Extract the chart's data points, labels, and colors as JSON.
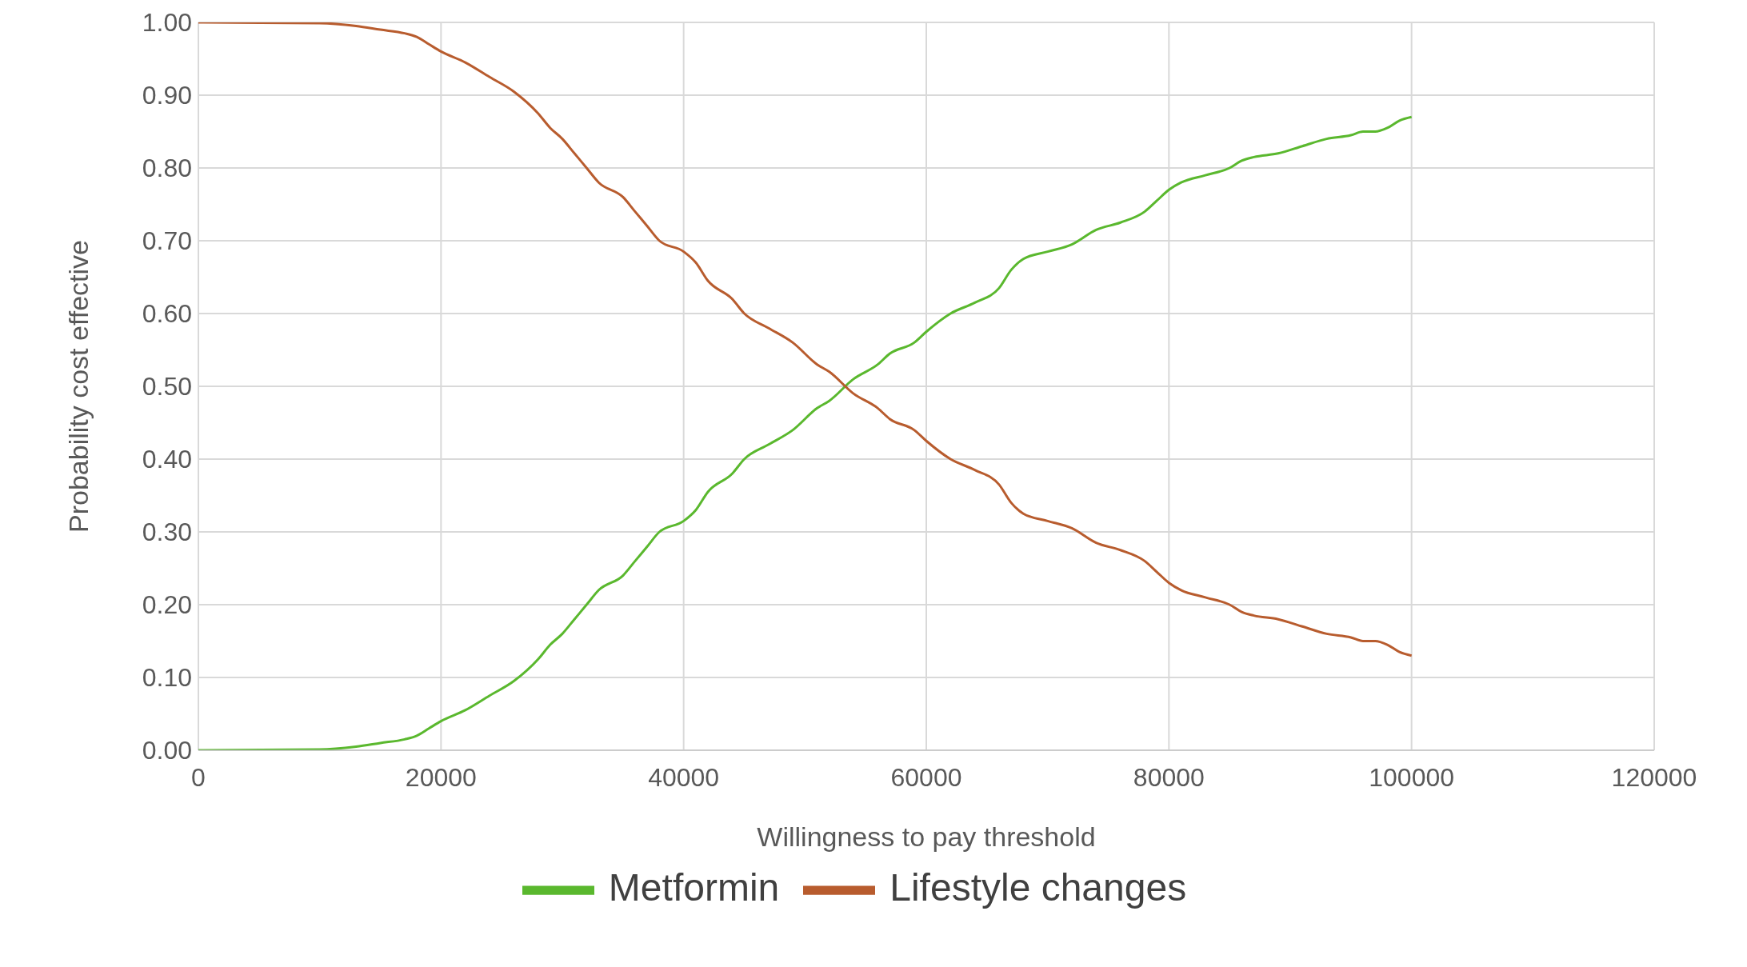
{
  "chart_data": {
    "type": "line",
    "xlabel": "Willingness to pay threshold",
    "ylabel": "Probability cost effective",
    "x": [
      0,
      10000,
      13000,
      15000,
      17000,
      18000,
      19000,
      20000,
      22000,
      24000,
      26000,
      28000,
      29000,
      30000,
      31000,
      32000,
      33000,
      35000,
      36000,
      37000,
      38000,
      40000,
      41000,
      42000,
      44000,
      45000,
      47000,
      49000,
      51000,
      52000,
      54000,
      56000,
      57000,
      59000,
      60000,
      62000,
      64000,
      66000,
      67000,
      68000,
      70000,
      72000,
      74000,
      76000,
      78000,
      79000,
      80000,
      81000,
      83000,
      85000,
      86000,
      87000,
      89000,
      91000,
      93000,
      95000,
      96000,
      97000,
      98000,
      99000,
      100000
    ],
    "series": [
      {
        "name": "Metformin",
        "color": "#5ab82e",
        "values": [
          0,
          0.001,
          0.005,
          0.01,
          0.015,
          0.02,
          0.03,
          0.04,
          0.055,
          0.075,
          0.095,
          0.125,
          0.145,
          0.16,
          0.18,
          0.2,
          0.22,
          0.24,
          0.26,
          0.28,
          0.3,
          0.315,
          0.33,
          0.355,
          0.38,
          0.4,
          0.42,
          0.44,
          0.47,
          0.48,
          0.51,
          0.53,
          0.545,
          0.56,
          0.575,
          0.6,
          0.615,
          0.635,
          0.66,
          0.675,
          0.685,
          0.695,
          0.715,
          0.725,
          0.74,
          0.755,
          0.77,
          0.78,
          0.79,
          0.8,
          0.81,
          0.815,
          0.82,
          0.83,
          0.84,
          0.845,
          0.85,
          0.85,
          0.855,
          0.865,
          0.87
        ]
      },
      {
        "name": "Lifestyle changes",
        "color": "#b85c2e",
        "values": [
          1,
          0.999,
          0.995,
          0.99,
          0.985,
          0.98,
          0.97,
          0.96,
          0.945,
          0.925,
          0.905,
          0.875,
          0.855,
          0.84,
          0.82,
          0.8,
          0.78,
          0.76,
          0.74,
          0.72,
          0.7,
          0.685,
          0.67,
          0.645,
          0.62,
          0.6,
          0.58,
          0.56,
          0.53,
          0.52,
          0.49,
          0.47,
          0.455,
          0.44,
          0.425,
          0.4,
          0.385,
          0.365,
          0.34,
          0.325,
          0.315,
          0.305,
          0.285,
          0.275,
          0.26,
          0.245,
          0.23,
          0.22,
          0.21,
          0.2,
          0.19,
          0.185,
          0.18,
          0.17,
          0.16,
          0.155,
          0.15,
          0.15,
          0.145,
          0.135,
          0.13
        ]
      }
    ],
    "xlim": [
      0,
      120000
    ],
    "xticks": [
      0,
      20000,
      40000,
      60000,
      80000,
      100000,
      120000
    ],
    "ylim": [
      0,
      1
    ],
    "yticks": [
      {
        "value": 0,
        "label": "0.00"
      },
      {
        "value": 0.1,
        "label": "0.10"
      },
      {
        "value": 0.2,
        "label": "0.20"
      },
      {
        "value": 0.3,
        "label": "0.30"
      },
      {
        "value": 0.4,
        "label": "0.40"
      },
      {
        "value": 0.5,
        "label": "0.50"
      },
      {
        "value": 0.6,
        "label": "0.60"
      },
      {
        "value": 0.7,
        "label": "0.70"
      },
      {
        "value": 0.8,
        "label": "0.80"
      },
      {
        "value": 0.9,
        "label": "0.90"
      },
      {
        "value": 1,
        "label": "1.00"
      }
    ],
    "grid": true,
    "legend": "bottom",
    "marker": "none",
    "line_style": "solid"
  }
}
